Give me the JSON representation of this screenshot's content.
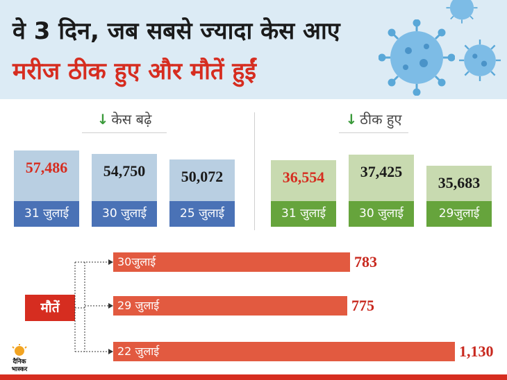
{
  "header": {
    "title_line1": "वे 3 दिन, जब सबसे ज्यादा केस आए",
    "title_line2": "मरीज ठीक हुए और मौतें हुईं"
  },
  "colors": {
    "cases_bar": "#b9cfe2",
    "cases_footer": "#4a72b6",
    "recovered_bar": "#c8dab0",
    "recovered_footer": "#66a43c",
    "deaths_bar": "#e25a40",
    "highlight_red": "#d62d20"
  },
  "chart_data": [
    {
      "type": "bar",
      "title": "केस बढ़े",
      "arrow": "↓",
      "categories": [
        "31 जुलाई",
        "30 जुलाई",
        "25 जुलाई"
      ],
      "values": [
        57486,
        54750,
        50072
      ],
      "value_labels": [
        "57,486",
        "54,750",
        "50,072"
      ],
      "highlight_index": 0
    },
    {
      "type": "bar",
      "title": "ठीक हुए",
      "arrow": "↓",
      "categories": [
        "31 जुलाई",
        "30 जुलाई",
        "29जुलाई"
      ],
      "values": [
        36554,
        37425,
        35683
      ],
      "value_labels": [
        "36,554",
        "37,425",
        "35,683"
      ],
      "highlight_index": 0
    },
    {
      "type": "bar",
      "orientation": "horizontal",
      "title": "मौतें",
      "categories": [
        "30जुलाई",
        "29 जुलाई",
        "22 जुलाई"
      ],
      "values": [
        783,
        775,
        1130
      ],
      "value_labels": [
        "783",
        "775",
        "1,130"
      ]
    }
  ],
  "logo": {
    "text_top": "दैनिक",
    "text_bottom": "भास्कर"
  }
}
